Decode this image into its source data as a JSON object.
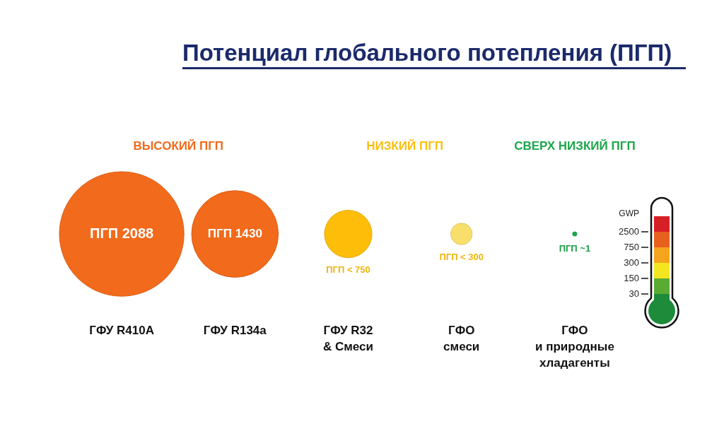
{
  "chart_data": {
    "type": "other",
    "title": "Потенциал глобального потепления (ПГП)",
    "categories": [
      "ГФУ R410A",
      "ГФУ R134a",
      "ГФУ R32\n& Смеси",
      "ГФО\nсмеси",
      "ГФО\nи природные\nхладагенты"
    ],
    "series": [
      {
        "name": "ВЫСОКИЙ ПГП",
        "color": "#f26a1b",
        "values": [
          2088,
          1430,
          null,
          null,
          null
        ],
        "value_labels": [
          "ПГП 2088",
          "ПГП 1430",
          null,
          null,
          null
        ]
      },
      {
        "name": "НИЗКИЙ ПГП",
        "color": "#fbbf0f",
        "colors": [
          null,
          null,
          "#fdbd08",
          "#f8df6c",
          null
        ],
        "values": [
          null,
          null,
          750,
          300,
          null
        ],
        "value_labels": [
          null,
          null,
          "ПГП < 750",
          "ПГП < 300",
          null
        ]
      },
      {
        "name": "СВЕРХ НИЗКИЙ ПГП",
        "color": "#1ba64b",
        "values": [
          null,
          null,
          null,
          null,
          1
        ],
        "value_labels": [
          null,
          null,
          null,
          null,
          "ПГП ~1"
        ]
      }
    ],
    "annotations": [
      "GWP",
      "2500",
      "750",
      "300",
      "150",
      "30"
    ]
  }
}
